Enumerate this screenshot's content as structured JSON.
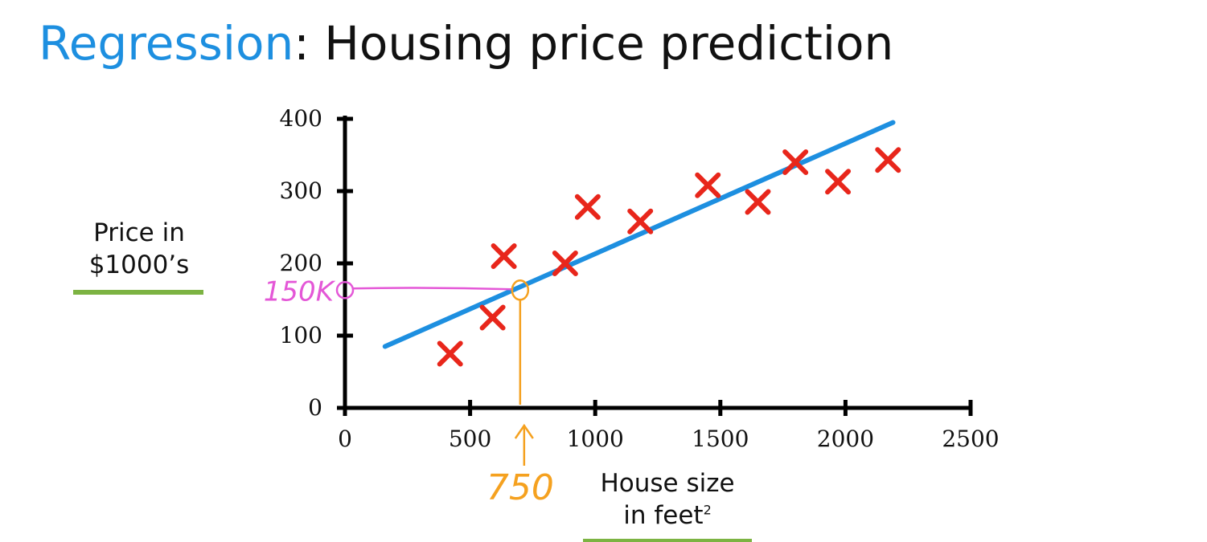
{
  "title": {
    "keyword": "Regression",
    "rest": ": Housing price prediction"
  },
  "colors": {
    "keyword": "#1d8fe0",
    "line": "#1d8fe0",
    "points": "#e8261b",
    "underline": "#7cb342",
    "annotation_y": "#e457d7",
    "annotation_x": "#f5a11f"
  },
  "chart_data": {
    "type": "scatter",
    "xlabel": "House size",
    "xlabel_line2": "in feet",
    "xlabel_sup": "2",
    "ylabel": "Price in",
    "ylabel_line2": "$1000’s",
    "xlim": [
      0,
      2500
    ],
    "ylim": [
      0,
      400
    ],
    "xticks": [
      0,
      500,
      1000,
      1500,
      2000,
      2500
    ],
    "yticks": [
      0,
      100,
      200,
      300,
      400
    ],
    "points": [
      {
        "x": 420,
        "y": 75
      },
      {
        "x": 590,
        "y": 125
      },
      {
        "x": 635,
        "y": 210
      },
      {
        "x": 880,
        "y": 200
      },
      {
        "x": 970,
        "y": 278
      },
      {
        "x": 1180,
        "y": 258
      },
      {
        "x": 1450,
        "y": 308
      },
      {
        "x": 1650,
        "y": 285
      },
      {
        "x": 1800,
        "y": 340
      },
      {
        "x": 1970,
        "y": 313
      },
      {
        "x": 2170,
        "y": 343
      }
    ],
    "fit_line": {
      "x": [
        160,
        2190
      ],
      "y": [
        85,
        395
      ]
    },
    "annotation": {
      "x": 700,
      "y": 163,
      "x_text": "750",
      "y_text": "150K"
    }
  }
}
